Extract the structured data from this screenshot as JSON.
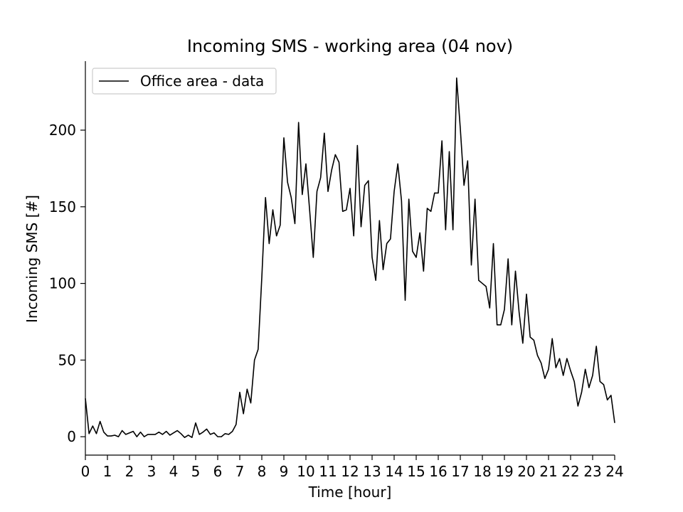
{
  "chart_data": {
    "type": "line",
    "title": "Incoming SMS - working area (04 nov)",
    "xlabel": "Time [hour]",
    "ylabel": "Incoming SMS [#]",
    "xlim": [
      0,
      24
    ],
    "ylim": [
      -12,
      245
    ],
    "xticks": [
      0,
      1,
      2,
      3,
      4,
      5,
      6,
      7,
      8,
      9,
      10,
      11,
      12,
      13,
      14,
      15,
      16,
      17,
      18,
      19,
      20,
      21,
      22,
      23,
      24
    ],
    "yticks": [
      0,
      50,
      100,
      150,
      200
    ],
    "grid": false,
    "legend_position": "upper left",
    "line_color": "#000000",
    "series": [
      {
        "name": "Office area - data",
        "x": [
          0,
          0.1667,
          0.3333,
          0.5,
          0.6667,
          0.8333,
          1,
          1.1667,
          1.3333,
          1.5,
          1.6667,
          1.8333,
          2,
          2.1667,
          2.3333,
          2.5,
          2.6667,
          2.8333,
          3,
          3.1667,
          3.3333,
          3.5,
          3.6667,
          3.8333,
          4,
          4.1667,
          4.3333,
          4.5,
          4.6667,
          4.8333,
          5,
          5.1667,
          5.3333,
          5.5,
          5.6667,
          5.8333,
          6,
          6.1667,
          6.3333,
          6.5,
          6.6667,
          6.8333,
          7,
          7.1667,
          7.3333,
          7.5,
          7.6667,
          7.8333,
          8,
          8.1667,
          8.3333,
          8.5,
          8.6667,
          8.8333,
          9,
          9.1667,
          9.3333,
          9.5,
          9.6667,
          9.8333,
          10,
          10.1667,
          10.3333,
          10.5,
          10.6667,
          10.8333,
          11,
          11.1667,
          11.3333,
          11.5,
          11.6667,
          11.8333,
          12,
          12.1667,
          12.3333,
          12.5,
          12.6667,
          12.8333,
          13,
          13.1667,
          13.3333,
          13.5,
          13.6667,
          13.8333,
          14,
          14.1667,
          14.3333,
          14.5,
          14.6667,
          14.8333,
          15,
          15.1667,
          15.3333,
          15.5,
          15.6667,
          15.8333,
          16,
          16.1667,
          16.3333,
          16.5,
          16.6667,
          16.8333,
          17,
          17.1667,
          17.3333,
          17.5,
          17.6667,
          17.8333,
          18,
          18.1667,
          18.3333,
          18.5,
          18.6667,
          18.8333,
          19,
          19.1667,
          19.3333,
          19.5,
          19.6667,
          19.8333,
          20,
          20.1667,
          20.3333,
          20.5,
          20.6667,
          20.8333,
          21,
          21.1667,
          21.3333,
          21.5,
          21.6667,
          21.8333,
          22,
          22.1667,
          22.3333,
          22.5,
          22.6667,
          22.8333,
          23,
          23.1667,
          23.3333,
          23.5,
          23.6667,
          23.8333,
          24
        ],
        "values": [
          25,
          2,
          7,
          2,
          10,
          3,
          0.5,
          0.5,
          1,
          0,
          4,
          1.5,
          2.5,
          3.5,
          0,
          3,
          0,
          1.5,
          1.5,
          1.5,
          3,
          1.5,
          3.5,
          1,
          2.5,
          4,
          2,
          -0.5,
          1,
          -0.5,
          9,
          1.5,
          3,
          5,
          1.5,
          2.5,
          0,
          0,
          2,
          1.5,
          3.5,
          8,
          29,
          15,
          31,
          22,
          50,
          57,
          104,
          156,
          126,
          148,
          131,
          138,
          195,
          166,
          156,
          139,
          205,
          158,
          178,
          148,
          117,
          160,
          169,
          198,
          160,
          174,
          184,
          179,
          147,
          148,
          162,
          131,
          190,
          137,
          164,
          167,
          117,
          102,
          141,
          109,
          126,
          129,
          160,
          178,
          154,
          89,
          155,
          121,
          117,
          133,
          108,
          149,
          147,
          159,
          159,
          193,
          135,
          186,
          135,
          234,
          201,
          164,
          180,
          112,
          155,
          102,
          100,
          98,
          84,
          126,
          73,
          73,
          83,
          116,
          73,
          108,
          81,
          61,
          93,
          65,
          63,
          53,
          48,
          38,
          44,
          64,
          45,
          51,
          40,
          51,
          43,
          36,
          20,
          29,
          44,
          32,
          40,
          59,
          36,
          34,
          24,
          27,
          9
        ]
      }
    ]
  }
}
